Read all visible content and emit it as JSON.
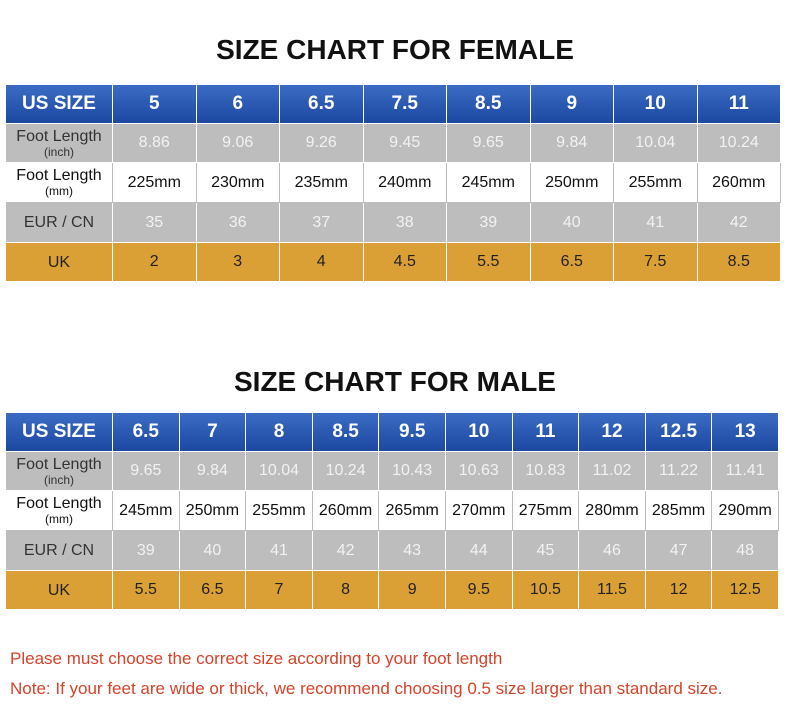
{
  "tables": [
    {
      "title": "SIZE CHART FOR FEMALE",
      "header": [
        "US SIZE",
        "5",
        "6",
        "6.5",
        "7.5",
        "8.5",
        "9",
        "10",
        "11"
      ],
      "rows": [
        {
          "label": "Foot Length",
          "sublabel": "(inch)",
          "cells": [
            "8.86",
            "9.06",
            "9.26",
            "9.45",
            "9.65",
            "9.84",
            "10.04",
            "10.24"
          ]
        },
        {
          "label": "Foot Length",
          "sublabel": "(mm)",
          "cells": [
            "225mm",
            "230mm",
            "235mm",
            "240mm",
            "245mm",
            "250mm",
            "255mm",
            "260mm"
          ]
        },
        {
          "label": "EUR / CN",
          "cells": [
            "35",
            "36",
            "37",
            "38",
            "39",
            "40",
            "41",
            "42"
          ]
        },
        {
          "label": "UK",
          "cells": [
            "2",
            "3",
            "4",
            "4.5",
            "5.5",
            "6.5",
            "7.5",
            "8.5"
          ]
        }
      ]
    },
    {
      "title": "SIZE CHART FOR MALE",
      "header": [
        "US SIZE",
        "6.5",
        "7",
        "8",
        "8.5",
        "9.5",
        "10",
        "11",
        "12",
        "12.5",
        "13"
      ],
      "rows": [
        {
          "label": "Foot Length",
          "sublabel": "(inch)",
          "cells": [
            "9.65",
            "9.84",
            "10.04",
            "10.24",
            "10.43",
            "10.63",
            "10.83",
            "11.02",
            "11.22",
            "11.41"
          ]
        },
        {
          "label": "Foot Length",
          "sublabel": "(mm)",
          "cells": [
            "245mm",
            "250mm",
            "255mm",
            "260mm",
            "265mm",
            "270mm",
            "275mm",
            "280mm",
            "285mm",
            "290mm"
          ]
        },
        {
          "label": "EUR / CN",
          "cells": [
            "39",
            "40",
            "41",
            "42",
            "43",
            "44",
            "45",
            "46",
            "47",
            "48"
          ]
        },
        {
          "label": "UK",
          "cells": [
            "5.5",
            "6.5",
            "7",
            "8",
            "9",
            "9.5",
            "10.5",
            "11.5",
            "12",
            "12.5"
          ]
        }
      ]
    }
  ],
  "notes": [
    "Please must choose the correct size  according to your foot length",
    "Note: If your feet are wide or thick, we recommend choosing 0.5 size larger than standard size."
  ]
}
